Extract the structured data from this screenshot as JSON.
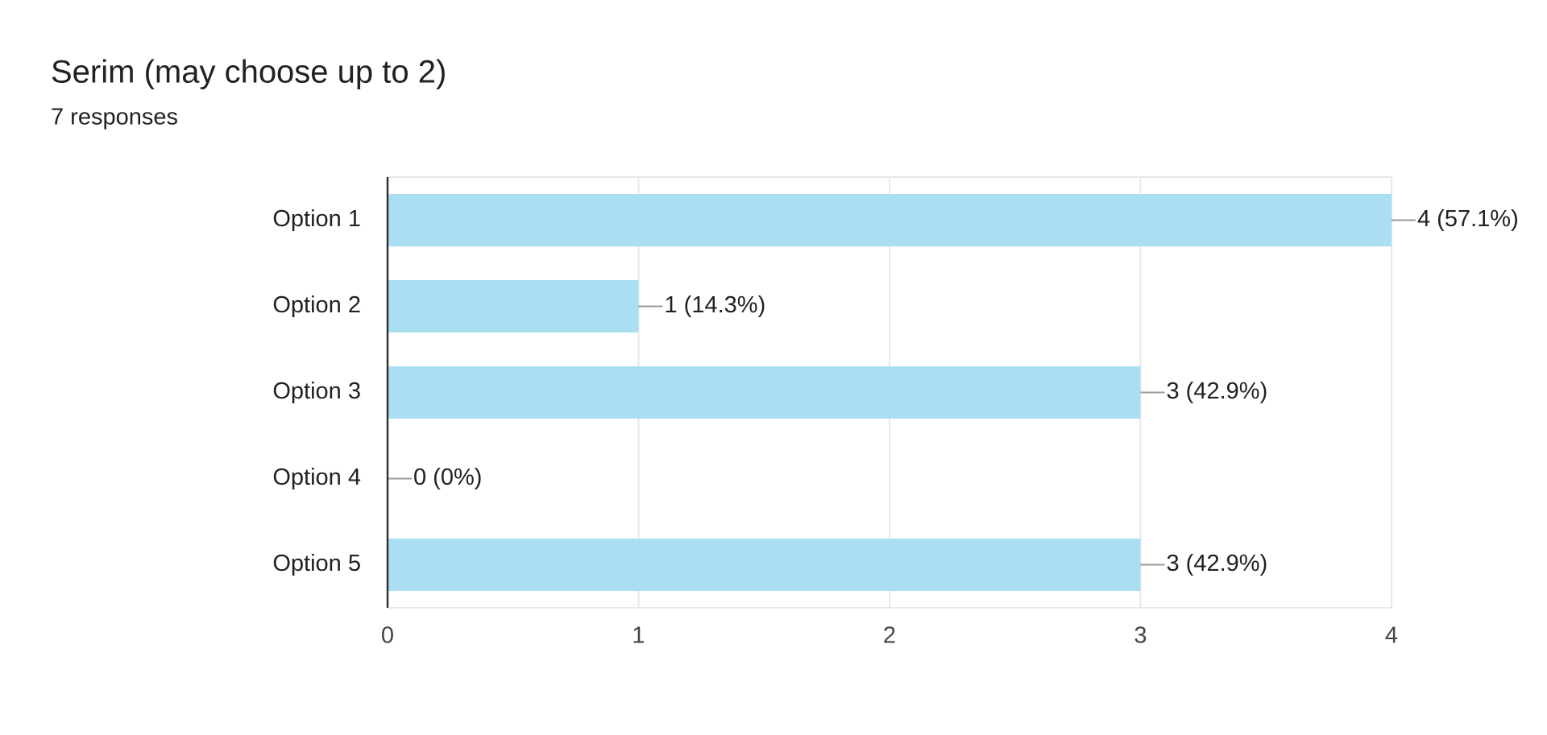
{
  "chart_data": {
    "type": "bar",
    "orientation": "horizontal",
    "title": "Serim (may choose up to 2)",
    "subtitle": "7 responses",
    "categories": [
      "Option 1",
      "Option 2",
      "Option 3",
      "Option 4",
      "Option 5"
    ],
    "values": [
      4,
      1,
      3,
      0,
      3
    ],
    "value_labels": [
      "4 (57.1%)",
      "1 (14.3%)",
      "3 (42.9%)",
      "0 (0%)",
      "3 (42.9%)"
    ],
    "color": "#aadff3",
    "xlim": [
      0,
      4
    ],
    "xticks": [
      0,
      1,
      2,
      3,
      4
    ],
    "grid": true
  }
}
